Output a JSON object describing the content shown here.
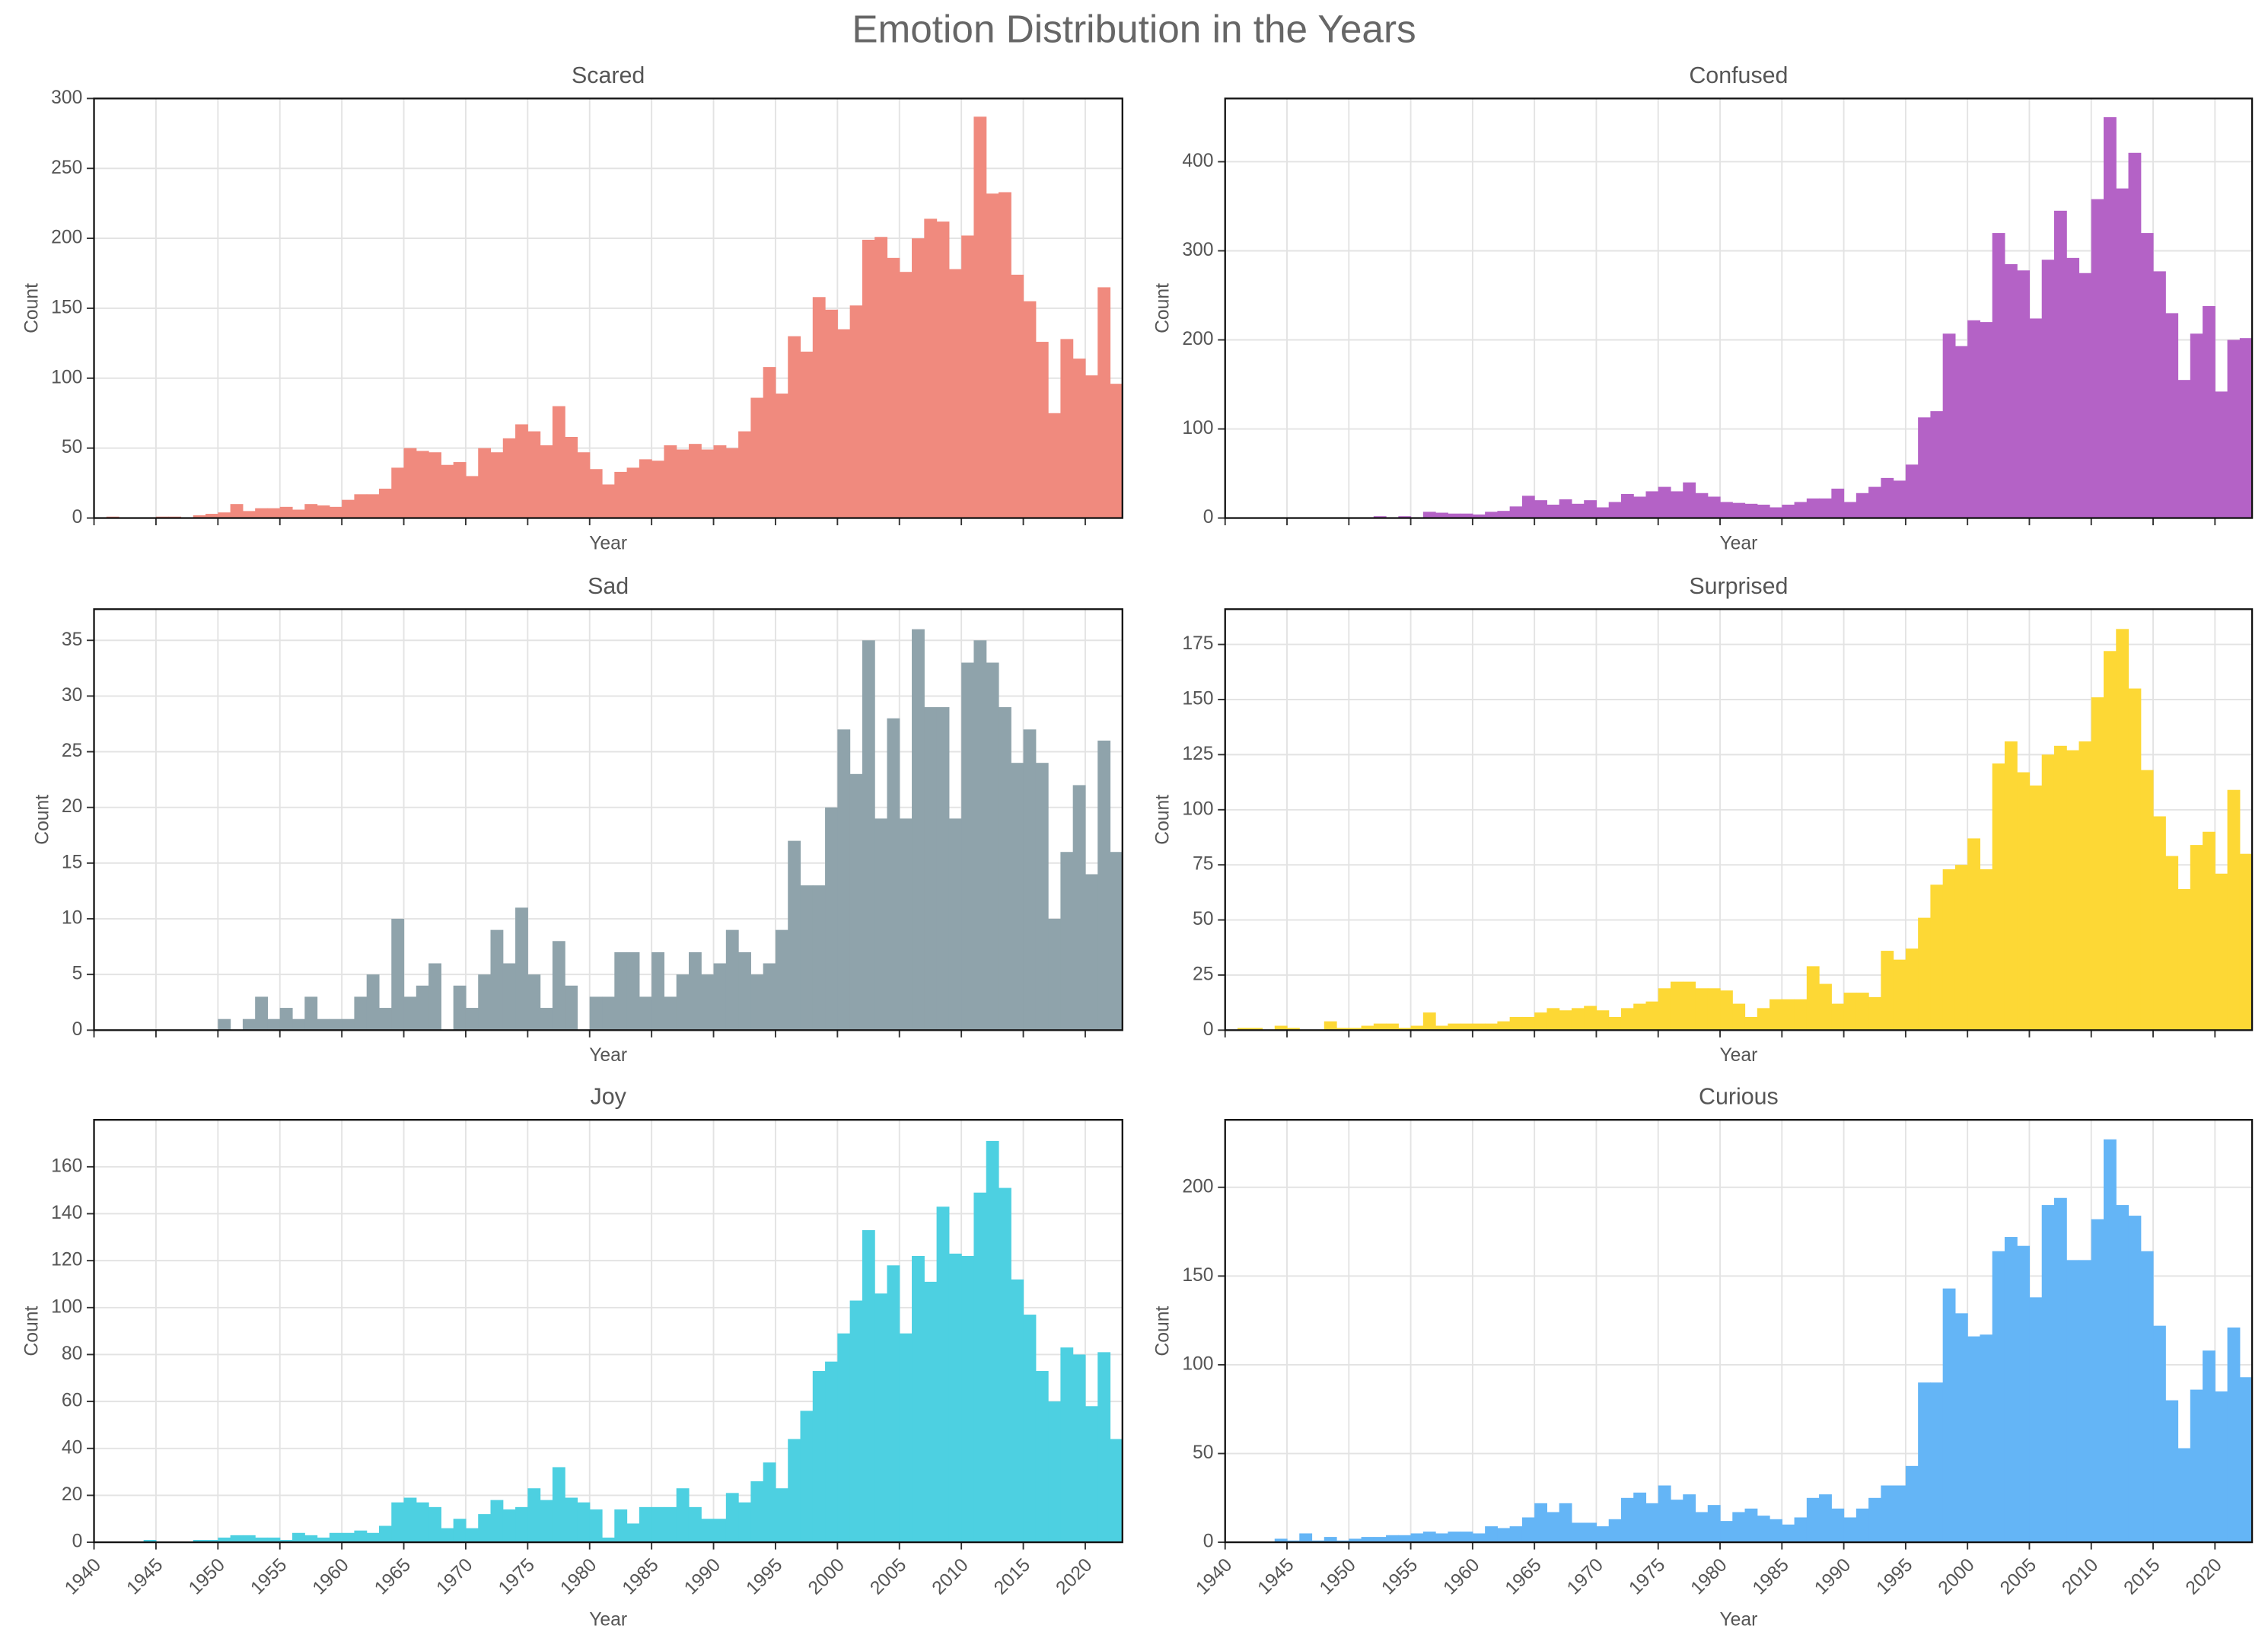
{
  "title": "Emotion Distribution in the Years",
  "chart_data": [
    {
      "type": "histogram",
      "title": "Scared",
      "x_label": "Year",
      "y_label": "Count",
      "color": "#f08a7e",
      "grid": true,
      "show_xtick_labels": false,
      "bins": [
        1940,
        1941,
        1942,
        1943,
        1944,
        1945,
        1946,
        1947,
        1948,
        1949,
        1950,
        1951,
        1952,
        1953,
        1954,
        1955,
        1956,
        1957,
        1958,
        1959,
        1960,
        1961,
        1962,
        1963,
        1964,
        1965,
        1966,
        1967,
        1968,
        1969,
        1970,
        1971,
        1972,
        1973,
        1974,
        1975,
        1976,
        1977,
        1978,
        1979,
        1980,
        1981,
        1982,
        1983,
        1984,
        1985,
        1986,
        1987,
        1988,
        1989,
        1990,
        1991,
        1992,
        1993,
        1994,
        1995,
        1996,
        1997,
        1998,
        1999,
        2000,
        2001,
        2002,
        2003,
        2004,
        2005,
        2006,
        2007,
        2008,
        2009,
        2010,
        2011,
        2012,
        2013,
        2014,
        2015,
        2016,
        2017,
        2018,
        2019,
        2020,
        2021,
        2022,
        2023
      ],
      "values": [
        0,
        1,
        0,
        0,
        0,
        1,
        1,
        0,
        2,
        3,
        4,
        10,
        5,
        7,
        7,
        8,
        6,
        10,
        9,
        8,
        13,
        17,
        17,
        21,
        36,
        50,
        48,
        47,
        38,
        40,
        30,
        50,
        47,
        57,
        67,
        62,
        52,
        80,
        58,
        47,
        35,
        24,
        33,
        36,
        42,
        41,
        52,
        49,
        53,
        49,
        52,
        50,
        62,
        86,
        108,
        89,
        130,
        119,
        158,
        149,
        135,
        152,
        199,
        201,
        186,
        176,
        200,
        214,
        212,
        178,
        202,
        287,
        232,
        233,
        174,
        155,
        126,
        75,
        128,
        114,
        102,
        165,
        96
      ],
      "xlim": [
        1940,
        2023
      ],
      "xticks": [
        1940,
        1945,
        1950,
        1955,
        1960,
        1965,
        1970,
        1975,
        1980,
        1985,
        1990,
        1995,
        2000,
        2005,
        2010,
        2015,
        2020
      ],
      "ylim": [
        0,
        300
      ],
      "yticks": [
        0,
        50,
        100,
        150,
        200,
        250,
        300
      ]
    },
    {
      "type": "histogram",
      "title": "Confused",
      "x_label": "Year",
      "y_label": "Count",
      "color": "#b462c6",
      "grid": true,
      "show_xtick_labels": false,
      "bins": [
        1940,
        1941,
        1942,
        1943,
        1944,
        1945,
        1946,
        1947,
        1948,
        1949,
        1950,
        1951,
        1952,
        1953,
        1954,
        1955,
        1956,
        1957,
        1958,
        1959,
        1960,
        1961,
        1962,
        1963,
        1964,
        1965,
        1966,
        1967,
        1968,
        1969,
        1970,
        1971,
        1972,
        1973,
        1974,
        1975,
        1976,
        1977,
        1978,
        1979,
        1980,
        1981,
        1982,
        1983,
        1984,
        1985,
        1986,
        1987,
        1988,
        1989,
        1990,
        1991,
        1992,
        1993,
        1994,
        1995,
        1996,
        1997,
        1998,
        1999,
        2000,
        2001,
        2002,
        2003,
        2004,
        2005,
        2006,
        2007,
        2008,
        2009,
        2010,
        2011,
        2012,
        2013,
        2014,
        2015,
        2016,
        2017,
        2018,
        2019,
        2020,
        2021,
        2022,
        2023
      ],
      "values": [
        0,
        0,
        0,
        0,
        0,
        0,
        0,
        0,
        0,
        0,
        0,
        0,
        2,
        0,
        2,
        0,
        7,
        6,
        5,
        5,
        4,
        7,
        8,
        13,
        25,
        20,
        15,
        21,
        16,
        20,
        12,
        18,
        27,
        24,
        30,
        35,
        30,
        40,
        28,
        24,
        18,
        17,
        16,
        15,
        12,
        15,
        18,
        22,
        22,
        33,
        18,
        28,
        35,
        45,
        42,
        60,
        113,
        120,
        207,
        193,
        222,
        220,
        320,
        285,
        278,
        224,
        290,
        345,
        292,
        275,
        358,
        450,
        370,
        410,
        320,
        277,
        230,
        155,
        207,
        238,
        142,
        200,
        202
      ],
      "xlim": [
        1940,
        2023
      ],
      "xticks": [
        1940,
        1945,
        1950,
        1955,
        1960,
        1965,
        1970,
        1975,
        1980,
        1985,
        1990,
        1995,
        2000,
        2005,
        2010,
        2015,
        2020
      ],
      "ylim": [
        0,
        471
      ],
      "yticks": [
        0,
        100,
        200,
        300,
        400
      ]
    },
    {
      "type": "histogram",
      "title": "Sad",
      "x_label": "Year",
      "y_label": "Count",
      "color": "#8fa3ab",
      "grid": true,
      "show_xtick_labels": false,
      "bins": [
        1940,
        1941,
        1942,
        1943,
        1944,
        1945,
        1946,
        1947,
        1948,
        1949,
        1950,
        1951,
        1952,
        1953,
        1954,
        1955,
        1956,
        1957,
        1958,
        1959,
        1960,
        1961,
        1962,
        1963,
        1964,
        1965,
        1966,
        1967,
        1968,
        1969,
        1970,
        1971,
        1972,
        1973,
        1974,
        1975,
        1976,
        1977,
        1978,
        1979,
        1980,
        1981,
        1982,
        1983,
        1984,
        1985,
        1986,
        1987,
        1988,
        1989,
        1990,
        1991,
        1992,
        1993,
        1994,
        1995,
        1996,
        1997,
        1998,
        1999,
        2000,
        2001,
        2002,
        2003,
        2004,
        2005,
        2006,
        2007,
        2008,
        2009,
        2010,
        2011,
        2012,
        2013,
        2014,
        2015,
        2016,
        2017,
        2018,
        2019,
        2020,
        2021,
        2022,
        2023
      ],
      "values": [
        0,
        0,
        0,
        0,
        0,
        0,
        0,
        0,
        0,
        0,
        1,
        0,
        1,
        3,
        1,
        2,
        1,
        3,
        1,
        1,
        1,
        3,
        5,
        2,
        10,
        3,
        4,
        6,
        0,
        4,
        2,
        5,
        9,
        6,
        11,
        5,
        2,
        8,
        4,
        0,
        3,
        3,
        7,
        7,
        3,
        7,
        3,
        5,
        7,
        5,
        6,
        9,
        7,
        5,
        6,
        9,
        17,
        13,
        13,
        20,
        27,
        23,
        35,
        19,
        28,
        19,
        36,
        29,
        29,
        19,
        33,
        35,
        33,
        29,
        24,
        27,
        24,
        10,
        16,
        22,
        14,
        26,
        16
      ],
      "xlim": [
        1940,
        2023
      ],
      "xticks": [
        1940,
        1945,
        1950,
        1955,
        1960,
        1965,
        1970,
        1975,
        1980,
        1985,
        1990,
        1995,
        2000,
        2005,
        2010,
        2015,
        2020
      ],
      "ylim": [
        0,
        37.8
      ],
      "yticks": [
        0,
        5,
        10,
        15,
        20,
        25,
        30,
        35
      ]
    },
    {
      "type": "histogram",
      "title": "Surprised",
      "x_label": "Year",
      "y_label": "Count",
      "color": "#fdd835",
      "grid": true,
      "show_xtick_labels": false,
      "bins": [
        1940,
        1941,
        1942,
        1943,
        1944,
        1945,
        1946,
        1947,
        1948,
        1949,
        1950,
        1951,
        1952,
        1953,
        1954,
        1955,
        1956,
        1957,
        1958,
        1959,
        1960,
        1961,
        1962,
        1963,
        1964,
        1965,
        1966,
        1967,
        1968,
        1969,
        1970,
        1971,
        1972,
        1973,
        1974,
        1975,
        1976,
        1977,
        1978,
        1979,
        1980,
        1981,
        1982,
        1983,
        1984,
        1985,
        1986,
        1987,
        1988,
        1989,
        1990,
        1991,
        1992,
        1993,
        1994,
        1995,
        1996,
        1997,
        1998,
        1999,
        2000,
        2001,
        2002,
        2003,
        2004,
        2005,
        2006,
        2007,
        2008,
        2009,
        2010,
        2011,
        2012,
        2013,
        2014,
        2015,
        2016,
        2017,
        2018,
        2019,
        2020,
        2021,
        2022,
        2023
      ],
      "values": [
        0,
        1,
        1,
        0,
        2,
        1,
        0,
        0,
        4,
        1,
        1,
        2,
        3,
        3,
        1,
        2,
        8,
        2,
        3,
        3,
        3,
        3,
        4,
        6,
        6,
        8,
        10,
        9,
        10,
        11,
        9,
        6,
        10,
        12,
        13,
        19,
        22,
        22,
        19,
        19,
        18,
        12,
        6,
        10,
        14,
        14,
        14,
        29,
        21,
        12,
        17,
        17,
        15,
        36,
        32,
        37,
        51,
        66,
        73,
        75,
        87,
        73,
        121,
        131,
        117,
        111,
        125,
        129,
        127,
        131,
        151,
        172,
        182,
        155,
        118,
        97,
        79,
        64,
        84,
        90,
        71,
        109,
        80
      ],
      "xlim": [
        1940,
        2023
      ],
      "xticks": [
        1940,
        1945,
        1950,
        1955,
        1960,
        1965,
        1970,
        1975,
        1980,
        1985,
        1990,
        1995,
        2000,
        2005,
        2010,
        2015,
        2020
      ],
      "ylim": [
        0,
        191
      ],
      "yticks": [
        0,
        25,
        50,
        75,
        100,
        125,
        150,
        175
      ]
    },
    {
      "type": "histogram",
      "title": "Joy",
      "x_label": "Year",
      "y_label": "Count",
      "color": "#4dd0e1",
      "grid": true,
      "show_xtick_labels": true,
      "bins": [
        1940,
        1941,
        1942,
        1943,
        1944,
        1945,
        1946,
        1947,
        1948,
        1949,
        1950,
        1951,
        1952,
        1953,
        1954,
        1955,
        1956,
        1957,
        1958,
        1959,
        1960,
        1961,
        1962,
        1963,
        1964,
        1965,
        1966,
        1967,
        1968,
        1969,
        1970,
        1971,
        1972,
        1973,
        1974,
        1975,
        1976,
        1977,
        1978,
        1979,
        1980,
        1981,
        1982,
        1983,
        1984,
        1985,
        1986,
        1987,
        1988,
        1989,
        1990,
        1991,
        1992,
        1993,
        1994,
        1995,
        1996,
        1997,
        1998,
        1999,
        2000,
        2001,
        2002,
        2003,
        2004,
        2005,
        2006,
        2007,
        2008,
        2009,
        2010,
        2011,
        2012,
        2013,
        2014,
        2015,
        2016,
        2017,
        2018,
        2019,
        2020,
        2021,
        2022,
        2023
      ],
      "values": [
        0,
        0,
        0,
        0,
        1,
        0,
        0,
        0,
        1,
        1,
        2,
        3,
        3,
        2,
        2,
        1,
        4,
        3,
        2,
        4,
        4,
        5,
        4,
        7,
        17,
        19,
        17,
        15,
        6,
        10,
        6,
        12,
        18,
        14,
        15,
        23,
        18,
        32,
        19,
        17,
        14,
        2,
        14,
        8,
        15,
        15,
        15,
        23,
        15,
        10,
        10,
        21,
        17,
        26,
        34,
        23,
        44,
        56,
        73,
        77,
        89,
        103,
        133,
        106,
        118,
        89,
        122,
        111,
        143,
        123,
        122,
        149,
        171,
        151,
        112,
        97,
        73,
        60,
        83,
        80,
        58,
        81,
        44
      ],
      "xlim": [
        1940,
        2023
      ],
      "xticks": [
        1940,
        1945,
        1950,
        1955,
        1960,
        1965,
        1970,
        1975,
        1980,
        1985,
        1990,
        1995,
        2000,
        2005,
        2010,
        2015,
        2020
      ],
      "ylim": [
        0,
        180
      ],
      "yticks": [
        0,
        20,
        40,
        60,
        80,
        100,
        120,
        140,
        160
      ]
    },
    {
      "type": "histogram",
      "title": "Curious",
      "x_label": "Year",
      "y_label": "Count",
      "color": "#64b5f6",
      "grid": true,
      "show_xtick_labels": true,
      "bins": [
        1940,
        1941,
        1942,
        1943,
        1944,
        1945,
        1946,
        1947,
        1948,
        1949,
        1950,
        1951,
        1952,
        1953,
        1954,
        1955,
        1956,
        1957,
        1958,
        1959,
        1960,
        1961,
        1962,
        1963,
        1964,
        1965,
        1966,
        1967,
        1968,
        1969,
        1970,
        1971,
        1972,
        1973,
        1974,
        1975,
        1976,
        1977,
        1978,
        1979,
        1980,
        1981,
        1982,
        1983,
        1984,
        1985,
        1986,
        1987,
        1988,
        1989,
        1990,
        1991,
        1992,
        1993,
        1994,
        1995,
        1996,
        1997,
        1998,
        1999,
        2000,
        2001,
        2002,
        2003,
        2004,
        2005,
        2006,
        2007,
        2008,
        2009,
        2010,
        2011,
        2012,
        2013,
        2014,
        2015,
        2016,
        2017,
        2018,
        2019,
        2020,
        2021,
        2022,
        2023
      ],
      "values": [
        0,
        0,
        0,
        0,
        2,
        1,
        5,
        1,
        3,
        1,
        2,
        3,
        3,
        4,
        4,
        5,
        6,
        5,
        6,
        6,
        5,
        9,
        8,
        9,
        14,
        22,
        17,
        22,
        11,
        11,
        9,
        13,
        25,
        28,
        22,
        32,
        24,
        27,
        17,
        21,
        12,
        17,
        19,
        15,
        13,
        10,
        14,
        25,
        27,
        19,
        14,
        19,
        25,
        32,
        32,
        43,
        90,
        90,
        143,
        129,
        116,
        117,
        164,
        172,
        167,
        138,
        190,
        194,
        159,
        159,
        182,
        227,
        190,
        184,
        164,
        122,
        80,
        53,
        86,
        108,
        85,
        121,
        93
      ],
      "xlim": [
        1940,
        2023
      ],
      "xticks": [
        1940,
        1945,
        1950,
        1955,
        1960,
        1965,
        1970,
        1975,
        1980,
        1985,
        1990,
        1995,
        2000,
        2005,
        2010,
        2015,
        2020
      ],
      "ylim": [
        0,
        238
      ],
      "yticks": [
        0,
        50,
        100,
        150,
        200
      ]
    }
  ]
}
